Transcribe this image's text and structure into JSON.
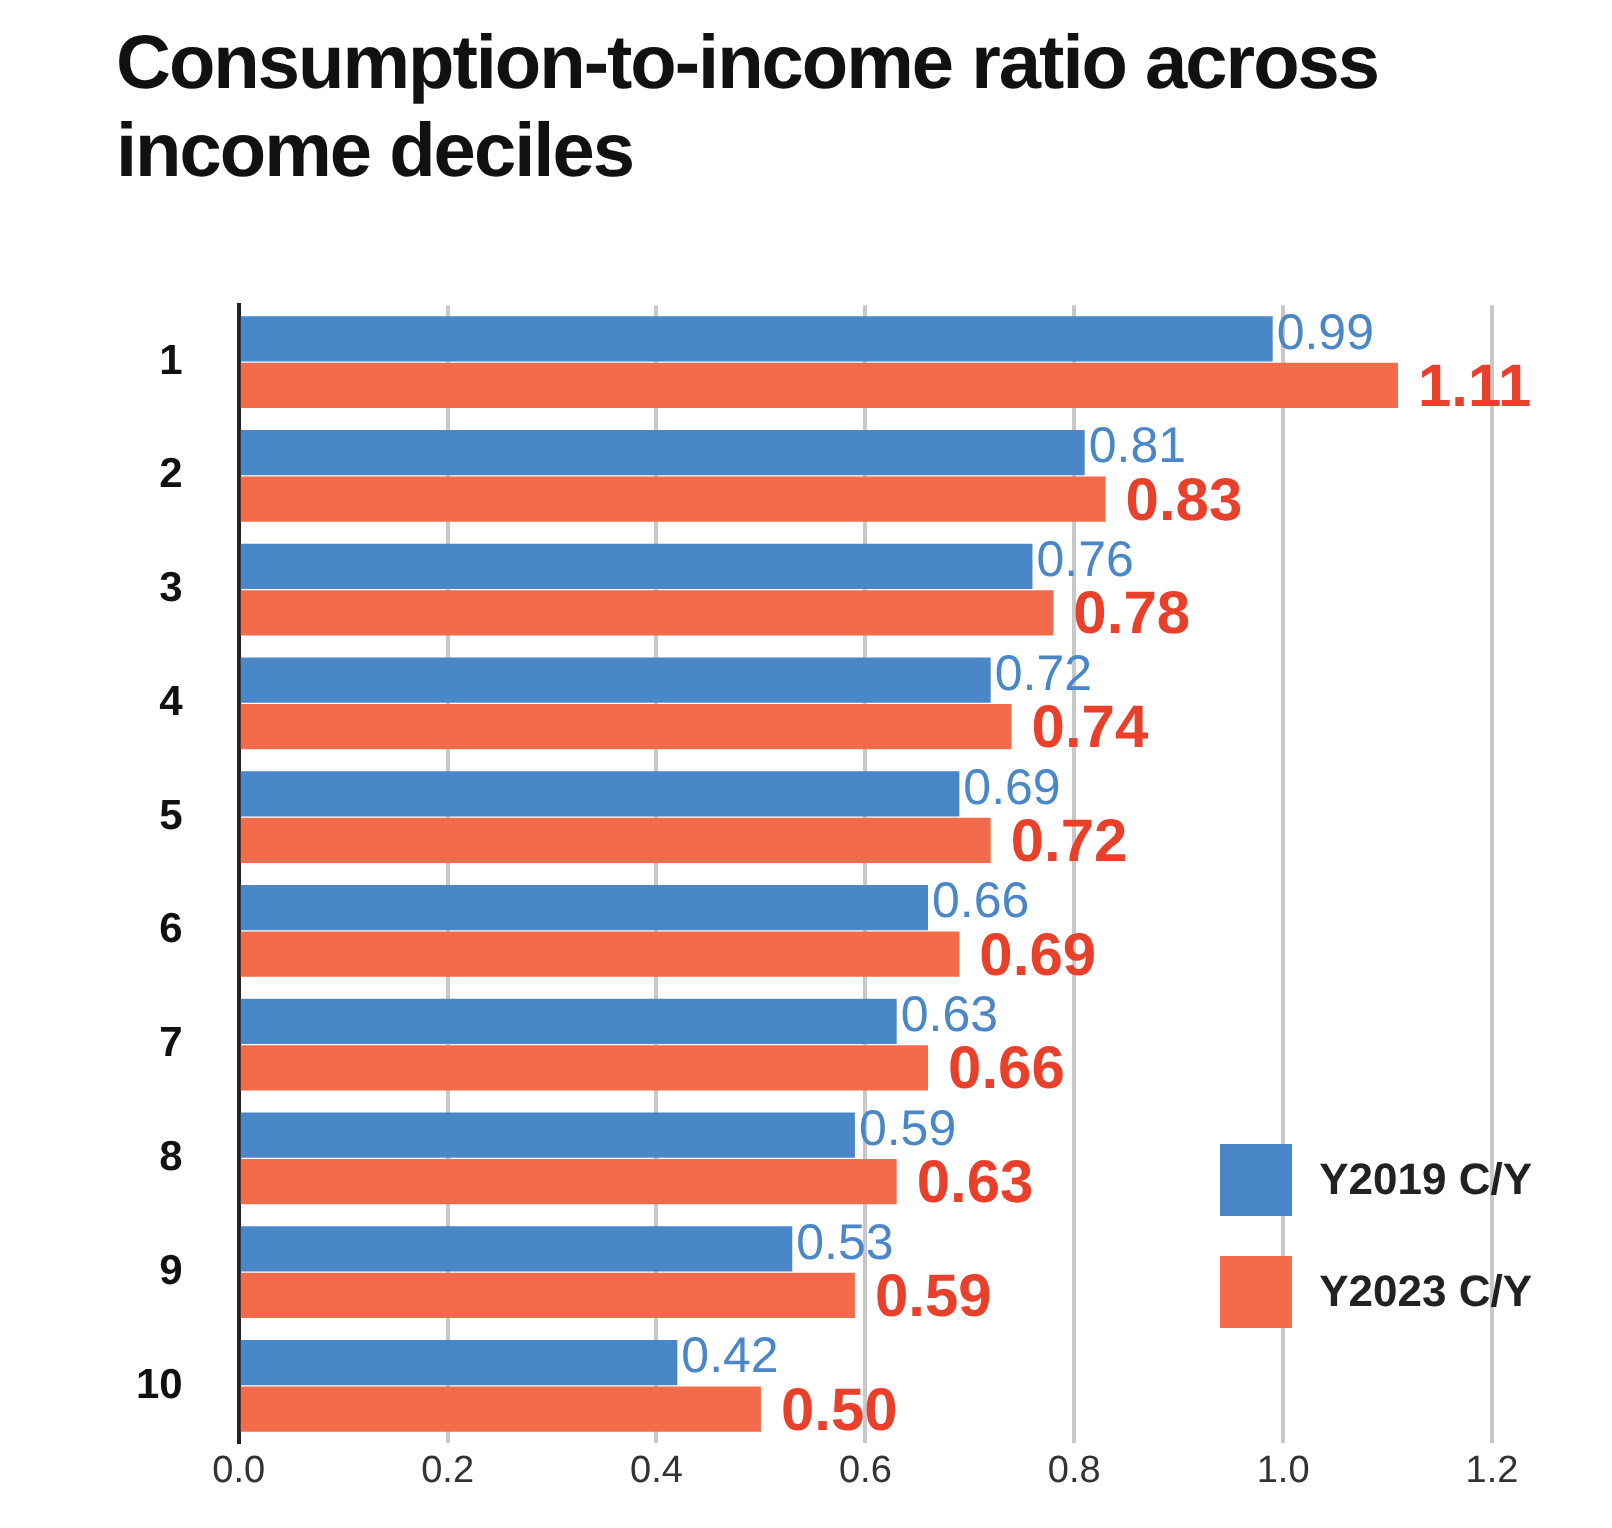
{
  "chart_data": {
    "type": "bar",
    "orientation": "horizontal",
    "title": "Consumption-to-income ratio across income deciles",
    "categories": [
      "1",
      "2",
      "3",
      "4",
      "5",
      "6",
      "7",
      "8",
      "9",
      "10"
    ],
    "series": [
      {
        "name": "Y2019 C/Y",
        "color": "#4a87c9",
        "values": [
          0.99,
          0.81,
          0.76,
          0.72,
          0.69,
          0.66,
          0.63,
          0.59,
          0.53,
          0.42
        ],
        "value_labels": [
          "0.99",
          "0.81",
          "0.76",
          "0.72",
          "0.69",
          "0.66",
          "0.63",
          "0.59",
          "0.53",
          "0.42"
        ]
      },
      {
        "name": "Y2023 C/Y",
        "color": "#f26b4a",
        "values": [
          1.11,
          0.83,
          0.78,
          0.74,
          0.72,
          0.69,
          0.66,
          0.63,
          0.59,
          0.5
        ],
        "value_labels": [
          "1.11",
          "0.83",
          "0.78",
          "0.74",
          "0.72",
          "0.69",
          "0.66",
          "0.63",
          "0.59",
          "0.50"
        ]
      }
    ],
    "xlim": [
      0,
      1.2
    ],
    "xticks": [
      {
        "value": 0,
        "label": "0.0"
      },
      {
        "value": 0.2,
        "label": "0.2"
      },
      {
        "value": 0.4,
        "label": "0.4"
      },
      {
        "value": 0.6,
        "label": "0.6"
      },
      {
        "value": 0.8,
        "label": "0.8"
      },
      {
        "value": 1,
        "label": "1.0"
      },
      {
        "value": 1.2,
        "label": "1.2"
      }
    ],
    "grid": "x",
    "legend": "bottom right"
  }
}
